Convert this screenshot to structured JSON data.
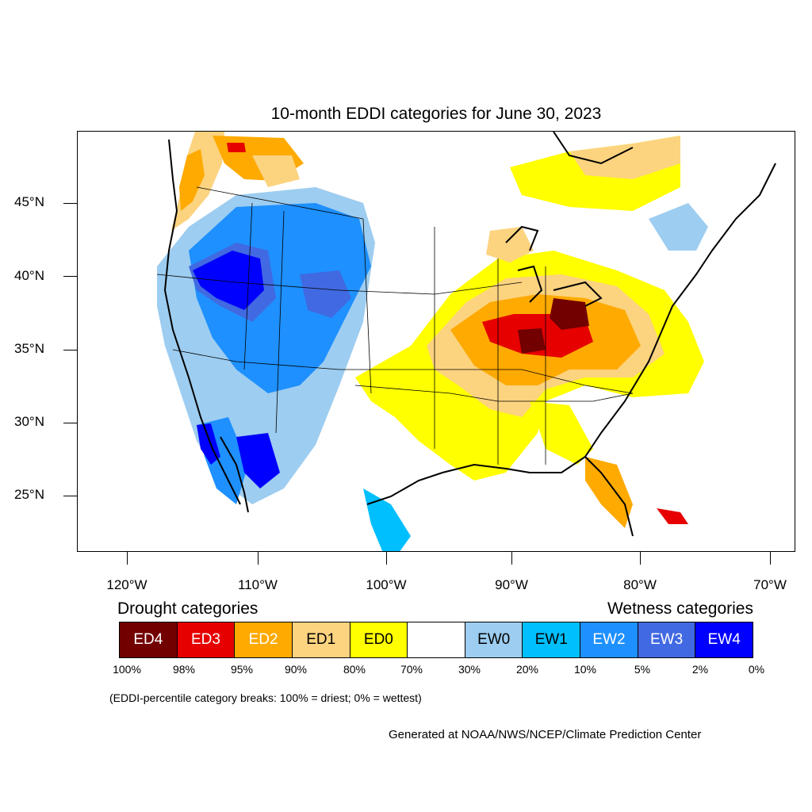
{
  "title": "10-month EDDI categories for June 30, 2023",
  "lat_labels": [
    "45°N",
    "40°N",
    "35°N",
    "30°N",
    "25°N"
  ],
  "lon_labels": [
    "120°W",
    "110°W",
    "100°W",
    "90°W",
    "80°W",
    "70°W"
  ],
  "legend": {
    "drought_title": "Drought categories",
    "wetness_title": "Wetness categories",
    "categories": [
      {
        "label": "ED4",
        "color": "#730000",
        "text_color": "#ffffff"
      },
      {
        "label": "ED3",
        "color": "#e60000",
        "text_color": "#ffffff"
      },
      {
        "label": "ED2",
        "color": "#ffaa00",
        "text_color": "#ffffff"
      },
      {
        "label": "ED1",
        "color": "#fcd37f",
        "text_color": "#000000"
      },
      {
        "label": "ED0",
        "color": "#ffff00",
        "text_color": "#000000"
      },
      {
        "label": "",
        "color": "#ffffff",
        "text_color": "#000000"
      },
      {
        "label": "EW0",
        "color": "#9dcdf0",
        "text_color": "#000000"
      },
      {
        "label": "EW1",
        "color": "#00bfff",
        "text_color": "#000000"
      },
      {
        "label": "EW2",
        "color": "#1e90ff",
        "text_color": "#ffffff"
      },
      {
        "label": "EW3",
        "color": "#4169e1",
        "text_color": "#ffffff"
      },
      {
        "label": "EW4",
        "color": "#0000ff",
        "text_color": "#ffffff"
      }
    ],
    "percentiles": [
      "100%",
      "98%",
      "95%",
      "90%",
      "80%",
      "70%",
      "30%",
      "20%",
      "10%",
      "5%",
      "2%",
      "0%"
    ]
  },
  "breaks_note": "(EDDI-percentile category breaks: 100% = driest; 0% = wettest)",
  "credit": "Generated at NOAA/NWS/NCEP/Climate Prediction Center"
}
